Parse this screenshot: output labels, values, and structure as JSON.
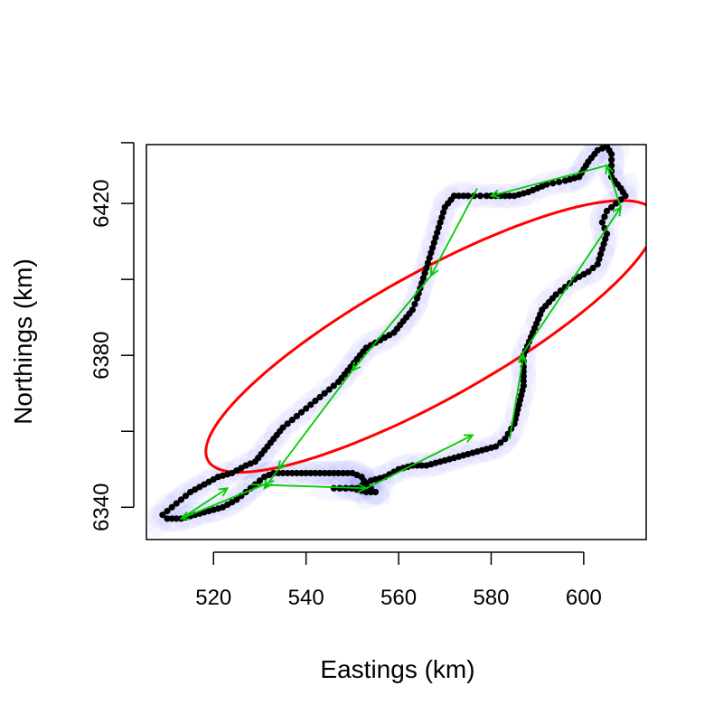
{
  "chart_data": {
    "type": "scatter",
    "xlabel": "Eastings (km)",
    "ylabel": "Northings (km)",
    "xlim": [
      505.5,
      613.5
    ],
    "ylim": [
      6331.5,
      6435.5
    ],
    "x_ticks": [
      520,
      540,
      560,
      580,
      600
    ],
    "y_ticks": [
      6340,
      6380,
      6420
    ],
    "y_ticks_unlabeled": [
      6360,
      6400,
      6436
    ],
    "colors": {
      "points": "#000000",
      "ellipse": "#ff0000",
      "arrows": "#00cc00",
      "uncertainty": "#3333ff"
    },
    "track_points": [
      [
        546,
        6345
      ],
      [
        551,
        6345
      ],
      [
        554,
        6347
      ],
      [
        557,
        6348
      ],
      [
        560,
        6350
      ],
      [
        563,
        6351
      ],
      [
        566,
        6351
      ],
      [
        569,
        6352
      ],
      [
        572,
        6353
      ],
      [
        575,
        6354
      ],
      [
        578,
        6355
      ],
      [
        581,
        6356
      ],
      [
        583,
        6358
      ],
      [
        585,
        6362
      ],
      [
        586,
        6367
      ],
      [
        587,
        6372
      ],
      [
        587,
        6377
      ],
      [
        587,
        6380
      ],
      [
        589,
        6386
      ],
      [
        591,
        6392
      ],
      [
        594,
        6396
      ],
      [
        598,
        6400
      ],
      [
        601,
        6402
      ],
      [
        603,
        6404
      ],
      [
        604,
        6408
      ],
      [
        605,
        6412
      ],
      [
        604,
        6415
      ],
      [
        605,
        6418
      ],
      [
        607,
        6420
      ],
      [
        609,
        6422
      ],
      [
        608,
        6424
      ],
      [
        606,
        6427
      ],
      [
        606,
        6430
      ],
      [
        606,
        6433
      ],
      [
        605,
        6435
      ],
      [
        603,
        6434
      ],
      [
        601,
        6431
      ],
      [
        600,
        6429
      ],
      [
        599,
        6427
      ],
      [
        596,
        6426
      ],
      [
        592,
        6425
      ],
      [
        588,
        6423
      ],
      [
        585,
        6422
      ],
      [
        582,
        6422
      ],
      [
        579,
        6422
      ],
      [
        575,
        6422
      ],
      [
        572,
        6422
      ],
      [
        570,
        6419
      ],
      [
        569,
        6415
      ],
      [
        568,
        6411
      ],
      [
        567,
        6407
      ],
      [
        566,
        6403
      ],
      [
        565,
        6399
      ],
      [
        564,
        6395
      ],
      [
        563,
        6392
      ],
      [
        561,
        6389
      ],
      [
        559,
        6386
      ],
      [
        556,
        6384
      ],
      [
        553,
        6382
      ],
      [
        551,
        6379
      ],
      [
        549,
        6376
      ],
      [
        547,
        6373
      ],
      [
        544,
        6370
      ],
      [
        541,
        6367
      ],
      [
        538,
        6364
      ],
      [
        535,
        6361
      ],
      [
        533,
        6358
      ],
      [
        531,
        6355
      ],
      [
        529,
        6352
      ],
      [
        527,
        6351
      ],
      [
        524,
        6349
      ],
      [
        521,
        6348
      ],
      [
        518,
        6346
      ],
      [
        515,
        6344
      ],
      [
        513,
        6342
      ],
      [
        511,
        6340
      ],
      [
        509,
        6338
      ],
      [
        510,
        6337
      ],
      [
        513,
        6337
      ],
      [
        516,
        6338
      ],
      [
        519,
        6339
      ],
      [
        522,
        6340
      ],
      [
        525,
        6342
      ],
      [
        527,
        6344
      ],
      [
        529,
        6346
      ],
      [
        531,
        6348
      ],
      [
        533,
        6349
      ],
      [
        536,
        6349
      ],
      [
        539,
        6349
      ],
      [
        542,
        6349
      ],
      [
        544,
        6349
      ],
      [
        546,
        6349
      ],
      [
        548,
        6349
      ],
      [
        550,
        6349
      ],
      [
        552,
        6348
      ],
      [
        553,
        6346
      ],
      [
        554,
        6345
      ],
      [
        555,
        6344
      ],
      [
        553,
        6344
      ],
      [
        550,
        6345
      ]
    ],
    "ellipse": {
      "center": [
        567,
        6385
      ],
      "semi_axes": [
        58.3,
        15.8
      ],
      "angle_deg": 34.9
    },
    "arrows": [
      [
        [
          533,
          6347
        ],
        [
          513,
          6337
        ]
      ],
      [
        [
          513,
          6337
        ],
        [
          523,
          6345
        ]
      ],
      [
        [
          528,
          6346
        ],
        [
          553,
          6345
        ]
      ],
      [
        [
          553,
          6345
        ],
        [
          576,
          6359
        ]
      ],
      [
        [
          584,
          6358
        ],
        [
          587,
          6380
        ]
      ],
      [
        [
          586,
          6379
        ],
        [
          608,
          6419
        ]
      ],
      [
        [
          608,
          6419
        ],
        [
          605,
          6430
        ]
      ],
      [
        [
          605,
          6430
        ],
        [
          580,
          6422
        ]
      ],
      [
        [
          577,
          6424
        ],
        [
          567,
          6401
        ]
      ],
      [
        [
          567,
          6401
        ],
        [
          550,
          6376
        ]
      ],
      [
        [
          550,
          6376
        ],
        [
          534,
          6350
        ]
      ],
      [
        [
          534,
          6350
        ],
        [
          531,
          6345
        ]
      ]
    ]
  }
}
